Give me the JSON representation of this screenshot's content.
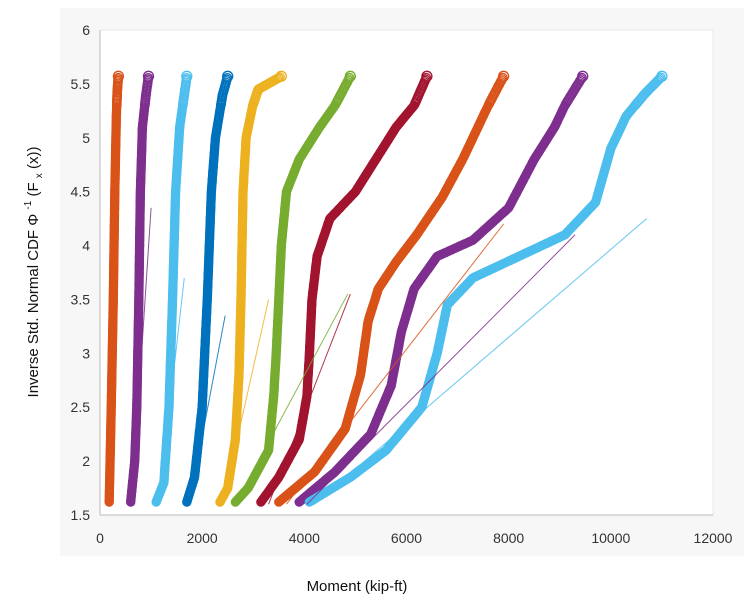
{
  "chart_data": {
    "type": "scatter",
    "title": "",
    "xlabel": "Moment (kip-ft)",
    "ylabel_main": "Inverse Std. Normal CDF Φ",
    "ylabel_sup": "-1",
    "ylabel_tail": "(F",
    "ylabel_sub": "x",
    "ylabel_end": "(x))",
    "xlim": [
      0,
      12000
    ],
    "ylim": [
      1.5,
      6
    ],
    "x_ticks": [
      "0",
      "2000",
      "4000",
      "6000",
      "8000",
      "10000",
      "12000"
    ],
    "y_ticks": [
      "1.5",
      "2",
      "2.5",
      "3",
      "3.5",
      "4",
      "4.5",
      "5",
      "5.5",
      "6"
    ],
    "grid": false,
    "series": [
      {
        "color": "#D95319",
        "points": [
          [
            180,
            1.62
          ],
          [
            220,
            2.5
          ],
          [
            260,
            3.5
          ],
          [
            290,
            4.5
          ],
          [
            320,
            5.2
          ],
          [
            340,
            5.45
          ],
          [
            360,
            5.57
          ]
        ],
        "fit": [
          [
            160,
            1.6
          ],
          [
            330,
            4.3
          ]
        ]
      },
      {
        "color": "#7E2F8E",
        "points": [
          [
            600,
            1.62
          ],
          [
            680,
            2.0
          ],
          [
            720,
            2.5
          ],
          [
            760,
            3.5
          ],
          [
            790,
            4.5
          ],
          [
            830,
            5.1
          ],
          [
            900,
            5.4
          ],
          [
            950,
            5.57
          ]
        ],
        "fit": [
          [
            620,
            1.6
          ],
          [
            1000,
            4.35
          ]
        ]
      },
      {
        "color": "#4DBEEE",
        "points": [
          [
            1100,
            1.62
          ],
          [
            1250,
            1.8
          ],
          [
            1350,
            2.5
          ],
          [
            1420,
            3.5
          ],
          [
            1480,
            4.5
          ],
          [
            1560,
            5.1
          ],
          [
            1650,
            5.4
          ],
          [
            1700,
            5.57
          ]
        ],
        "fit": [
          [
            1150,
            1.6
          ],
          [
            1650,
            3.7
          ]
        ]
      },
      {
        "color": "#0072BD",
        "points": [
          [
            1700,
            1.62
          ],
          [
            1850,
            1.85
          ],
          [
            2000,
            2.5
          ],
          [
            2100,
            3.5
          ],
          [
            2180,
            4.5
          ],
          [
            2260,
            5.0
          ],
          [
            2400,
            5.4
          ],
          [
            2500,
            5.57
          ]
        ],
        "fit": [
          [
            1750,
            1.6
          ],
          [
            2450,
            3.35
          ]
        ]
      },
      {
        "color": "#EDB120",
        "points": [
          [
            2350,
            1.62
          ],
          [
            2500,
            1.75
          ],
          [
            2650,
            2.2
          ],
          [
            2720,
            2.8
          ],
          [
            2760,
            3.5
          ],
          [
            2800,
            4.5
          ],
          [
            2860,
            5.0
          ],
          [
            2990,
            5.3
          ],
          [
            3100,
            5.45
          ],
          [
            3550,
            5.57
          ]
        ],
        "fit": [
          [
            2400,
            1.6
          ],
          [
            3300,
            3.5
          ]
        ]
      },
      {
        "color": "#77AC30",
        "points": [
          [
            2650,
            1.62
          ],
          [
            2900,
            1.75
          ],
          [
            3300,
            2.1
          ],
          [
            3400,
            2.6
          ],
          [
            3450,
            3.0
          ],
          [
            3500,
            3.5
          ],
          [
            3550,
            4.0
          ],
          [
            3650,
            4.5
          ],
          [
            3900,
            4.8
          ],
          [
            4300,
            5.1
          ],
          [
            4600,
            5.3
          ],
          [
            4900,
            5.57
          ]
        ],
        "fit": [
          [
            2650,
            1.6
          ],
          [
            4850,
            3.55
          ]
        ]
      },
      {
        "color": "#A2142F",
        "points": [
          [
            3150,
            1.62
          ],
          [
            3500,
            1.85
          ],
          [
            3900,
            2.2
          ],
          [
            4050,
            2.6
          ],
          [
            4100,
            3.0
          ],
          [
            4150,
            3.5
          ],
          [
            4250,
            3.9
          ],
          [
            4500,
            4.25
          ],
          [
            5000,
            4.5
          ],
          [
            5400,
            4.8
          ],
          [
            5800,
            5.1
          ],
          [
            6150,
            5.3
          ],
          [
            6400,
            5.57
          ]
        ],
        "fit": [
          [
            3300,
            1.6
          ],
          [
            4900,
            3.55
          ]
        ]
      },
      {
        "color": "#D95319",
        "points": [
          [
            3500,
            1.62
          ],
          [
            4200,
            1.9
          ],
          [
            4800,
            2.3
          ],
          [
            5100,
            2.8
          ],
          [
            5250,
            3.3
          ],
          [
            5450,
            3.6
          ],
          [
            5800,
            3.85
          ],
          [
            6200,
            4.1
          ],
          [
            6700,
            4.45
          ],
          [
            7100,
            4.8
          ],
          [
            7400,
            5.1
          ],
          [
            7600,
            5.3
          ],
          [
            7900,
            5.57
          ]
        ],
        "fit": [
          [
            3650,
            1.6
          ],
          [
            7900,
            4.2
          ]
        ]
      },
      {
        "color": "#7E2F8E",
        "points": [
          [
            3900,
            1.62
          ],
          [
            4600,
            1.9
          ],
          [
            5300,
            2.25
          ],
          [
            5700,
            2.7
          ],
          [
            5900,
            3.2
          ],
          [
            6150,
            3.6
          ],
          [
            6600,
            3.9
          ],
          [
            7300,
            4.05
          ],
          [
            8000,
            4.35
          ],
          [
            8500,
            4.8
          ],
          [
            8900,
            5.1
          ],
          [
            9100,
            5.3
          ],
          [
            9450,
            5.57
          ]
        ],
        "fit": [
          [
            4050,
            1.6
          ],
          [
            9300,
            4.1
          ]
        ]
      },
      {
        "color": "#4DBEEE",
        "points": [
          [
            4100,
            1.62
          ],
          [
            4900,
            1.85
          ],
          [
            5600,
            2.1
          ],
          [
            6300,
            2.5
          ],
          [
            6600,
            3.0
          ],
          [
            6800,
            3.45
          ],
          [
            7300,
            3.7
          ],
          [
            8200,
            3.9
          ],
          [
            9100,
            4.1
          ],
          [
            9700,
            4.4
          ],
          [
            10000,
            4.9
          ],
          [
            10300,
            5.2
          ],
          [
            10650,
            5.4
          ],
          [
            11000,
            5.57
          ]
        ],
        "fit": [
          [
            4200,
            1.6
          ],
          [
            10700,
            4.25
          ]
        ]
      }
    ]
  }
}
